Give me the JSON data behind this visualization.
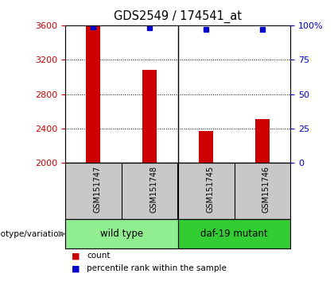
{
  "title": "GDS2549 / 174541_at",
  "samples": [
    "GSM151747",
    "GSM151748",
    "GSM151745",
    "GSM151746"
  ],
  "groups": [
    {
      "name": "wild type",
      "color": "#90EE90",
      "samples": [
        0,
        1
      ]
    },
    {
      "name": "daf-19 mutant",
      "color": "#32CD32",
      "samples": [
        2,
        3
      ]
    }
  ],
  "bar_values": [
    3600,
    3080,
    2375,
    2510
  ],
  "bar_color": "#CC0000",
  "dot_values": [
    99,
    98,
    97,
    97
  ],
  "dot_color": "#0000CC",
  "ylim_left": [
    2000,
    3600
  ],
  "ylim_right": [
    0,
    100
  ],
  "yticks_left": [
    2000,
    2400,
    2800,
    3200,
    3600
  ],
  "yticks_right": [
    0,
    25,
    50,
    75,
    100
  ],
  "ytick_labels_right": [
    "0",
    "25",
    "50",
    "75",
    "100%"
  ],
  "left_axis_color": "#CC0000",
  "right_axis_color": "#0000CC",
  "grid_color": "#000000",
  "bar_width": 0.25,
  "legend_count_label": "count",
  "legend_pct_label": "percentile rank within the sample",
  "genotype_label": "genotype/variation",
  "sample_box_color": "#C8C8C8",
  "background_color": "#FFFFFF"
}
